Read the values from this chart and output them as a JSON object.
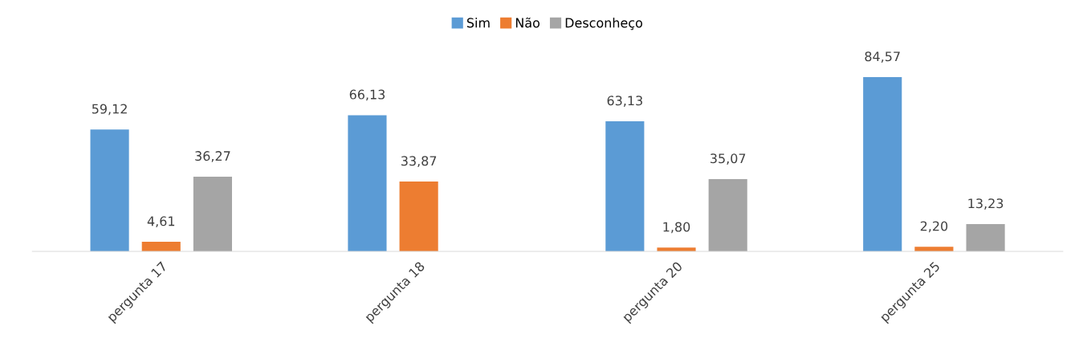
{
  "chart_data": {
    "type": "bar",
    "categories": [
      "pergunta 17",
      "pergunta 18",
      "pergunta 20",
      "pergunta 25"
    ],
    "series": [
      {
        "name": "Sim",
        "color": "#5b9bd5",
        "values": [
          59.12,
          66.13,
          63.13,
          84.57
        ],
        "value_labels": [
          "59,12",
          "66,13",
          "63,13",
          "84,57"
        ]
      },
      {
        "name": "Não",
        "color": "#ed7d31",
        "values": [
          4.61,
          33.87,
          1.8,
          2.2
        ],
        "value_labels": [
          "4,61",
          "33,87",
          "1,80",
          "2,20"
        ]
      },
      {
        "name": "Desconheço",
        "color": "#a5a5a5",
        "values": [
          36.27,
          null,
          35.07,
          13.23
        ],
        "value_labels": [
          "36,27",
          null,
          "35,07",
          "13,23"
        ]
      }
    ],
    "legend": "top"
  }
}
